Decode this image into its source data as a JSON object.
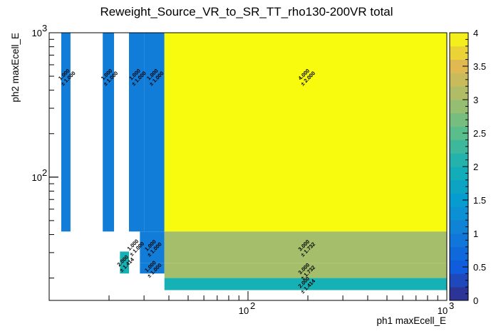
{
  "chart_data": {
    "type": "heatmap",
    "title": "Reweight_Source_VR_to_SR_TT_rho130-200VR total",
    "xlabel": "ph1 maxEcell_E",
    "ylabel": "ph2 maxEcell_E",
    "x_scale": "log",
    "y_scale": "log",
    "xlim": [
      10,
      1000
    ],
    "ylim": [
      14,
      1000
    ],
    "x_tick_labels": [
      {
        "value": 100,
        "label": "10",
        "exp": "2"
      },
      {
        "value": 1000,
        "label": "10",
        "exp": "3"
      }
    ],
    "y_tick_labels": [
      {
        "value": 100,
        "label": "10",
        "exp": "2"
      },
      {
        "value": 1000,
        "label": "10",
        "exp": "3"
      }
    ],
    "zlim": [
      0,
      4
    ],
    "colorbar_ticks": [
      "0",
      "0.5",
      "1",
      "1.5",
      "2",
      "2.5",
      "3",
      "3.5",
      "4"
    ],
    "cells": [
      {
        "x": [
          11.5,
          12.8
        ],
        "y": [
          42,
          1000
        ],
        "value": 1.0,
        "label": "1.000",
        "error": "± 1.000"
      },
      {
        "x": [
          18.6,
          21.2
        ],
        "y": [
          42,
          1000
        ],
        "value": 1.0,
        "label": "1.000",
        "error": "± 1.000"
      },
      {
        "x": [
          25.2,
          30.0
        ],
        "y": [
          42,
          1000
        ],
        "value": 1.0,
        "label": "1.000",
        "error": "± 1.000"
      },
      {
        "x": [
          30.0,
          38.0
        ],
        "y": [
          42,
          1000
        ],
        "value": 1.0,
        "label": "1.000",
        "error": "± 1.000"
      },
      {
        "x": [
          38.0,
          1000
        ],
        "y": [
          42,
          1000
        ],
        "value": 4.0,
        "label": "4.000",
        "error": "± 2.000"
      },
      {
        "x": [
          22.7,
          25.2
        ],
        "y": [
          21.5,
          30.5
        ],
        "value": 2.0,
        "label": "2.000",
        "error": "± 1.414"
      },
      {
        "x": [
          28.6,
          38.0
        ],
        "y": [
          25.5,
          42
        ],
        "value": 1.0,
        "label": "1.000",
        "error": "± 1.000"
      },
      {
        "x": [
          28.6,
          38.0
        ],
        "y": [
          21.5,
          25.5
        ],
        "value": 1.0,
        "label": "1.000",
        "error": "± 1.000"
      },
      {
        "x": [
          38.0,
          1000
        ],
        "y": [
          25.5,
          42
        ],
        "value": 3.0,
        "label": "3.000",
        "error": "± 1.732"
      },
      {
        "x": [
          38.0,
          1000
        ],
        "y": [
          20.0,
          25.5
        ],
        "value": 3.0,
        "label": "3.000",
        "error": "± 1.732"
      },
      {
        "x": [
          38.0,
          1000
        ],
        "y": [
          16.5,
          20.0
        ],
        "value": 2.0,
        "label": "2.000",
        "error": "± 1.414"
      }
    ],
    "extra_labels": [
      {
        "x": 26.9,
        "y": 33.0,
        "label": "1.000",
        "error": "± 1.000"
      }
    ]
  }
}
